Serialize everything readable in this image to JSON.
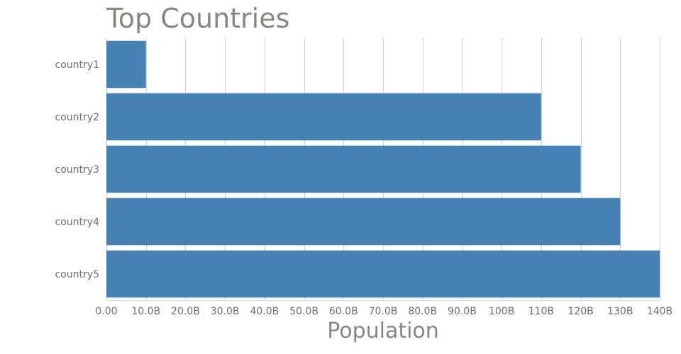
{
  "chart_data": {
    "type": "bar",
    "orientation": "horizontal",
    "title": "Top Countries",
    "xlabel": "Population",
    "ylabel": "",
    "categories": [
      "country1",
      "country2",
      "country3",
      "country4",
      "country5"
    ],
    "values": [
      10000000000,
      110000000000,
      120000000000,
      130000000000,
      140000000000
    ],
    "xlim": [
      0,
      140000000000
    ],
    "x_ticks": [
      {
        "value": 0,
        "label": "0.00"
      },
      {
        "value": 10000000000,
        "label": "10.0B"
      },
      {
        "value": 20000000000,
        "label": "20.0B"
      },
      {
        "value": 30000000000,
        "label": "30.0B"
      },
      {
        "value": 40000000000,
        "label": "40.0B"
      },
      {
        "value": 50000000000,
        "label": "50.0B"
      },
      {
        "value": 60000000000,
        "label": "60.0B"
      },
      {
        "value": 70000000000,
        "label": "70.0B"
      },
      {
        "value": 80000000000,
        "label": "80.0B"
      },
      {
        "value": 90000000000,
        "label": "90.0B"
      },
      {
        "value": 100000000000,
        "label": "100B"
      },
      {
        "value": 110000000000,
        "label": "110B"
      },
      {
        "value": 120000000000,
        "label": "120B"
      },
      {
        "value": 130000000000,
        "label": "130B"
      },
      {
        "value": 140000000000,
        "label": "140B"
      }
    ],
    "grid": true,
    "bar_color": "#4682b4",
    "title_color": "#8a8680",
    "tick_color": "#6e6e6e"
  }
}
